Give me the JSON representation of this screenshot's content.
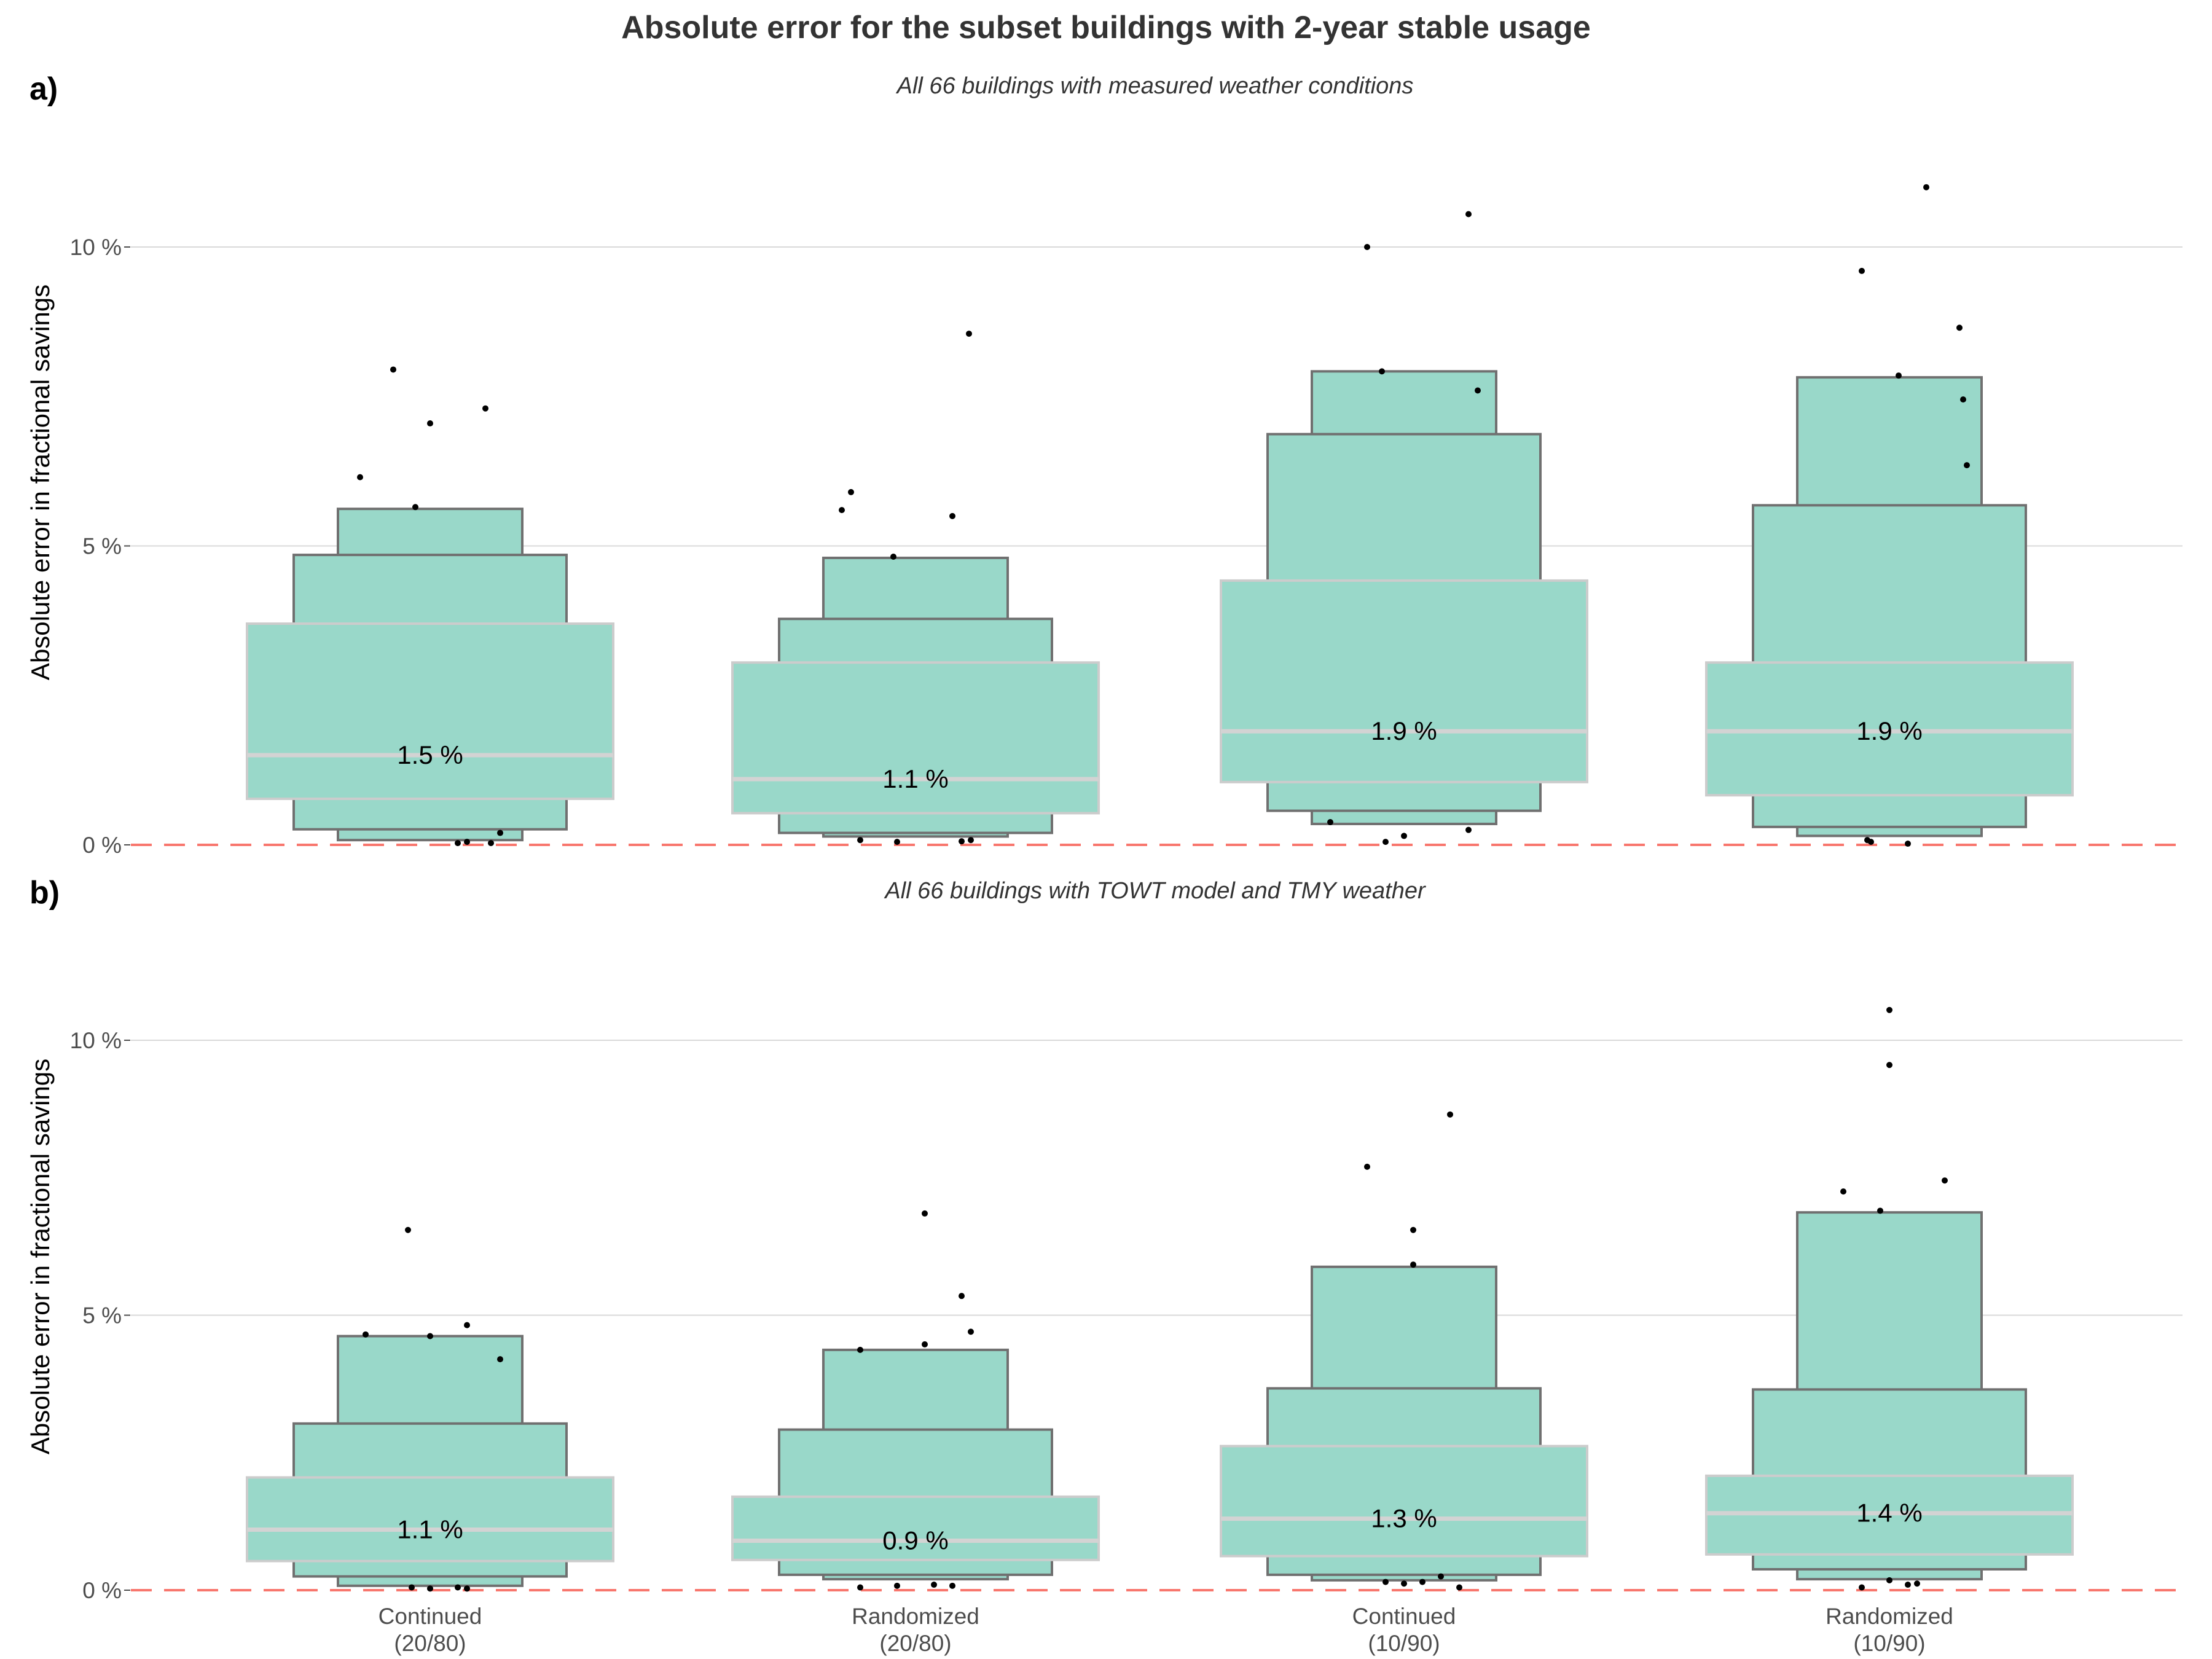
{
  "title": "Absolute error for the subset buildings with 2-year stable usage",
  "colors": {
    "box_fill": "#99d8c9",
    "box_stroke": "#707070",
    "median": "#d3d3d3",
    "zero_line": "#f8766d",
    "grid": "#d9d9d9",
    "points": "#000000"
  },
  "chart_data": [
    {
      "type": "boxplot",
      "panel_tag": "a)",
      "subtitle": "All 66 buildings with measured weather conditions",
      "ylabel": "Absolute error in fractional savings",
      "ylim": [
        0,
        11
      ],
      "yticks": [
        {
          "value": 0,
          "label": "0 %"
        },
        {
          "value": 5,
          "label": "5 %"
        },
        {
          "value": 10,
          "label": "10 %"
        }
      ],
      "grid": true,
      "reference_line": 0,
      "groups": [
        {
          "median": 1.5,
          "median_label": "1.5 %",
          "levels": [
            [
              0.77,
              3.7
            ],
            [
              0.26,
              4.85
            ],
            [
              0.08,
              5.62
            ]
          ],
          "outliers": [
            [
              -0.2,
              7.95
            ],
            [
              0.0,
              7.05
            ],
            [
              0.3,
              7.3
            ],
            [
              -0.38,
              6.15
            ],
            [
              -0.08,
              5.65
            ],
            [
              0.38,
              0.2
            ],
            [
              0.15,
              0.03
            ],
            [
              0.2,
              0.05
            ],
            [
              0.33,
              0.03
            ]
          ]
        },
        {
          "median": 1.1,
          "median_label": "1.1 %",
          "levels": [
            [
              0.53,
              3.05
            ],
            [
              0.2,
              3.78
            ],
            [
              0.14,
              4.8
            ]
          ],
          "outliers": [
            [
              0.29,
              8.55
            ],
            [
              -0.35,
              5.9
            ],
            [
              -0.4,
              5.6
            ],
            [
              0.2,
              5.5
            ],
            [
              -0.12,
              4.82
            ],
            [
              -0.3,
              0.08
            ],
            [
              -0.1,
              0.05
            ],
            [
              0.25,
              0.06
            ],
            [
              0.3,
              0.08
            ]
          ]
        },
        {
          "median": 1.9,
          "median_label": "1.9 %",
          "levels": [
            [
              1.05,
              4.42
            ],
            [
              0.57,
              6.87
            ],
            [
              0.35,
              7.92
            ]
          ],
          "outliers": [
            [
              0.35,
              10.55
            ],
            [
              -0.2,
              10.0
            ],
            [
              -0.12,
              7.92
            ],
            [
              0.4,
              7.6
            ],
            [
              -0.4,
              0.38
            ],
            [
              0.35,
              0.25
            ],
            [
              0.0,
              0.15
            ],
            [
              -0.1,
              0.05
            ]
          ]
        },
        {
          "median": 1.9,
          "median_label": "1.9 %",
          "levels": [
            [
              0.83,
              3.05
            ],
            [
              0.3,
              5.68
            ],
            [
              0.15,
              7.82
            ]
          ],
          "outliers": [
            [
              0.2,
              11.0
            ],
            [
              -0.15,
              9.6
            ],
            [
              0.38,
              8.65
            ],
            [
              0.05,
              7.85
            ],
            [
              0.4,
              7.45
            ],
            [
              0.42,
              6.35
            ],
            [
              -0.12,
              0.08
            ],
            [
              -0.1,
              0.05
            ],
            [
              0.1,
              0.02
            ]
          ]
        }
      ]
    },
    {
      "type": "boxplot",
      "panel_tag": "b)",
      "subtitle": "All 66 buildings with TOWT model and TMY weather",
      "ylabel": "Absolute error in fractional savings",
      "ylim": [
        0,
        11
      ],
      "yticks": [
        {
          "value": 0,
          "label": "0 %"
        },
        {
          "value": 5,
          "label": "5 %"
        },
        {
          "value": 10,
          "label": "10 %"
        }
      ],
      "grid": true,
      "reference_line": 0,
      "categories": [
        "Continued\n(20/80)",
        "Randomized\n(20/80)",
        "Continued\n(10/90)",
        "Randomized\n(10/90)"
      ],
      "groups": [
        {
          "median": 1.1,
          "median_label": "1.1 %",
          "levels": [
            [
              0.53,
              2.05
            ],
            [
              0.25,
              3.03
            ],
            [
              0.08,
              4.62
            ]
          ],
          "outliers": [
            [
              -0.12,
              6.55
            ],
            [
              0.2,
              4.82
            ],
            [
              -0.35,
              4.65
            ],
            [
              0.0,
              4.62
            ],
            [
              0.38,
              4.2
            ],
            [
              -0.1,
              0.05
            ],
            [
              0.0,
              0.03
            ],
            [
              0.15,
              0.05
            ],
            [
              0.2,
              0.03
            ]
          ]
        },
        {
          "median": 0.9,
          "median_label": "0.9 %",
          "levels": [
            [
              0.55,
              1.7
            ],
            [
              0.28,
              2.92
            ],
            [
              0.2,
              4.37
            ]
          ],
          "outliers": [
            [
              0.05,
              6.85
            ],
            [
              0.25,
              5.35
            ],
            [
              0.3,
              4.7
            ],
            [
              0.05,
              4.47
            ],
            [
              -0.3,
              4.37
            ],
            [
              -0.3,
              0.05
            ],
            [
              -0.1,
              0.08
            ],
            [
              0.1,
              0.1
            ],
            [
              0.2,
              0.08
            ]
          ]
        },
        {
          "median": 1.3,
          "median_label": "1.3 %",
          "levels": [
            [
              0.62,
              2.62
            ],
            [
              0.28,
              3.67
            ],
            [
              0.18,
              5.88
            ]
          ],
          "outliers": [
            [
              0.25,
              8.65
            ],
            [
              -0.2,
              7.7
            ],
            [
              0.05,
              6.55
            ],
            [
              0.05,
              5.92
            ],
            [
              0.2,
              0.25
            ],
            [
              0.1,
              0.15
            ],
            [
              0.0,
              0.12
            ],
            [
              -0.1,
              0.15
            ],
            [
              0.3,
              0.05
            ]
          ]
        },
        {
          "median": 1.4,
          "median_label": "1.4 %",
          "levels": [
            [
              0.65,
              2.08
            ],
            [
              0.38,
              3.65
            ],
            [
              0.2,
              6.87
            ]
          ],
          "outliers": [
            [
              0.0,
              10.55
            ],
            [
              0.0,
              9.55
            ],
            [
              0.3,
              7.45
            ],
            [
              -0.25,
              7.25
            ],
            [
              -0.05,
              6.9
            ],
            [
              -0.15,
              0.05
            ],
            [
              0.0,
              0.18
            ],
            [
              0.15,
              0.12
            ],
            [
              0.1,
              0.1
            ]
          ]
        }
      ]
    }
  ]
}
